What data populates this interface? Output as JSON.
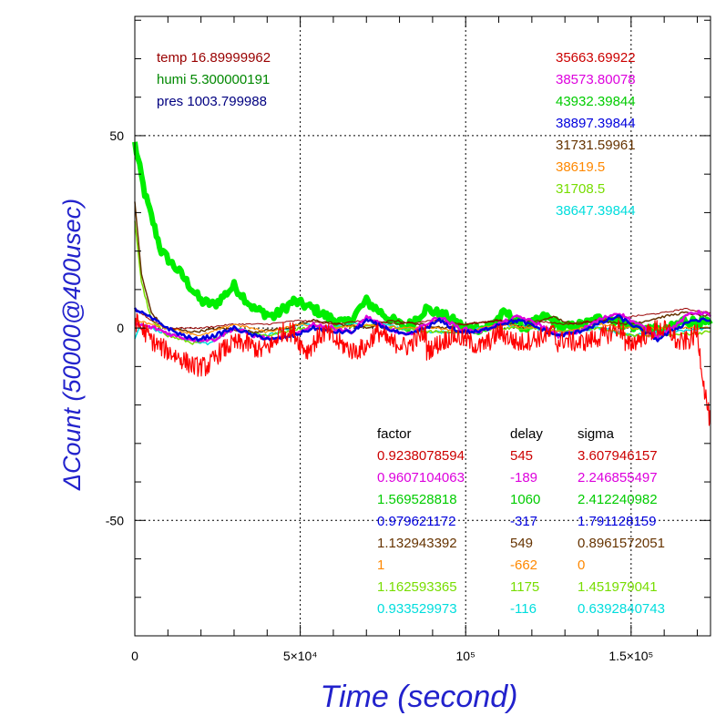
{
  "chart_data": {
    "type": "line",
    "title": "",
    "xlabel": "Time (second)",
    "ylabel": "ΔCount (50000@400usec)",
    "xlim": [
      0,
      174000
    ],
    "ylim": [
      -80,
      81
    ],
    "x_ticks": [
      {
        "value": 0,
        "label": "0"
      },
      {
        "value": 50000,
        "label": "5×10⁴"
      },
      {
        "value": 100000,
        "label": "10⁵"
      },
      {
        "value": 150000,
        "label": "1.5×10⁵"
      }
    ],
    "y_ticks": [
      {
        "value": 50,
        "label": "50"
      },
      {
        "value": 0,
        "label": "0"
      },
      {
        "value": -50,
        "label": "-50"
      }
    ],
    "grid": true,
    "env_labels": [
      {
        "text": "temp 16.89999962",
        "color": "#990000"
      },
      {
        "text": "humi 5.300000191",
        "color": "#008800"
      },
      {
        "text": "pres 1003.799988",
        "color": "#000080"
      }
    ],
    "series_means": [
      {
        "text": "35663.69922",
        "color": "#cc0000"
      },
      {
        "text": "38573.80078",
        "color": "#dd00dd"
      },
      {
        "text": "43932.39844",
        "color": "#00cc00"
      },
      {
        "text": "38897.39844",
        "color": "#0000dd"
      },
      {
        "text": "31731.59961",
        "color": "#663300"
      },
      {
        "text": "38619.5",
        "color": "#ff8800"
      },
      {
        "text": "31708.5",
        "color": "#77dd00"
      },
      {
        "text": "38647.39844",
        "color": "#00dddd"
      }
    ],
    "table": {
      "headers": [
        "factor",
        "delay",
        "sigma"
      ],
      "rows": [
        {
          "factor": "0.9238078594",
          "delay": "545",
          "sigma": "3.607946157",
          "color": "#cc0000"
        },
        {
          "factor": "0.9607104063",
          "delay": "-189",
          "sigma": "2.246855497",
          "color": "#dd00dd"
        },
        {
          "factor": "1.569528818",
          "delay": "1060",
          "sigma": "2.412240982",
          "color": "#00cc00"
        },
        {
          "factor": "0.979621172",
          "delay": "-317",
          "sigma": "1.791128159",
          "color": "#0000dd"
        },
        {
          "factor": "1.132943392",
          "delay": "549",
          "sigma": "0.8961572051",
          "color": "#663300"
        },
        {
          "factor": "1",
          "delay": "-662",
          "sigma": "0",
          "color": "#ff8800"
        },
        {
          "factor": "1.162593365",
          "delay": "1175",
          "sigma": "1.451979041",
          "color": "#77dd00"
        },
        {
          "factor": "0.933529973",
          "delay": "-116",
          "sigma": "0.6392840743",
          "color": "#00dddd"
        }
      ]
    },
    "series": [
      {
        "color": "#00ee00",
        "width": 6,
        "noise": 1.2,
        "points": [
          [
            0,
            48
          ],
          [
            3000,
            35
          ],
          [
            8000,
            20
          ],
          [
            14000,
            14
          ],
          [
            20000,
            7
          ],
          [
            24000,
            6
          ],
          [
            30000,
            11
          ],
          [
            36000,
            5
          ],
          [
            42000,
            3
          ],
          [
            48000,
            7
          ],
          [
            54000,
            5
          ],
          [
            58000,
            3
          ],
          [
            64000,
            1
          ],
          [
            70000,
            7
          ],
          [
            76000,
            3
          ],
          [
            82000,
            0
          ],
          [
            88000,
            5
          ],
          [
            94000,
            3
          ],
          [
            100000,
            0
          ],
          [
            106000,
            0
          ],
          [
            112000,
            4
          ],
          [
            118000,
            0
          ],
          [
            124000,
            3
          ],
          [
            130000,
            0
          ],
          [
            136000,
            1
          ],
          [
            142000,
            3
          ],
          [
            148000,
            1
          ],
          [
            154000,
            0
          ],
          [
            160000,
            -1
          ],
          [
            166000,
            2
          ],
          [
            174000,
            1
          ]
        ]
      },
      {
        "color": "#00dddd",
        "width": 1.5,
        "noise": 0.4,
        "points": [
          [
            0,
            -3
          ],
          [
            2000,
            1
          ],
          [
            8000,
            -1
          ],
          [
            16000,
            -3
          ],
          [
            22000,
            -4
          ],
          [
            30000,
            0
          ],
          [
            40000,
            -2
          ],
          [
            50000,
            1
          ],
          [
            60000,
            0
          ],
          [
            70000,
            2
          ],
          [
            80000,
            0
          ],
          [
            90000,
            -1
          ],
          [
            100000,
            -1
          ],
          [
            110000,
            1
          ],
          [
            120000,
            0
          ],
          [
            130000,
            -1
          ],
          [
            140000,
            0
          ],
          [
            150000,
            -2
          ],
          [
            160000,
            -1
          ],
          [
            174000,
            0
          ]
        ]
      },
      {
        "color": "#77dd00",
        "width": 1.5,
        "noise": 0.4,
        "points": [
          [
            0,
            28
          ],
          [
            2000,
            12
          ],
          [
            5000,
            2
          ],
          [
            10000,
            -2
          ],
          [
            18000,
            -4
          ],
          [
            24000,
            -3
          ],
          [
            30000,
            0
          ],
          [
            40000,
            -2
          ],
          [
            50000,
            0
          ],
          [
            60000,
            0
          ],
          [
            70000,
            1
          ],
          [
            80000,
            0
          ],
          [
            90000,
            -1
          ],
          [
            100000,
            -1
          ],
          [
            110000,
            0
          ],
          [
            120000,
            0
          ],
          [
            130000,
            -1
          ],
          [
            140000,
            0
          ],
          [
            150000,
            -2
          ],
          [
            160000,
            -2
          ],
          [
            174000,
            -1
          ]
        ]
      },
      {
        "color": "#663300",
        "width": 1.5,
        "noise": 0.3,
        "points": [
          [
            0,
            33
          ],
          [
            2000,
            14
          ],
          [
            5000,
            4
          ],
          [
            9000,
            0
          ],
          [
            18000,
            -1
          ],
          [
            26000,
            0
          ],
          [
            36000,
            -1
          ],
          [
            46000,
            0
          ],
          [
            54000,
            2
          ],
          [
            62000,
            1
          ],
          [
            70000,
            0
          ],
          [
            78000,
            2
          ],
          [
            86000,
            1
          ],
          [
            94000,
            0
          ],
          [
            100000,
            1
          ],
          [
            110000,
            2
          ],
          [
            118000,
            0
          ],
          [
            126000,
            3
          ],
          [
            132000,
            1
          ],
          [
            140000,
            2
          ],
          [
            150000,
            1
          ],
          [
            160000,
            3
          ],
          [
            166000,
            4
          ],
          [
            174000,
            3
          ]
        ]
      },
      {
        "color": "#990000",
        "width": 1,
        "noise": 0.2,
        "points": [
          [
            0,
            5
          ],
          [
            5000,
            2
          ],
          [
            10000,
            0
          ],
          [
            20000,
            0
          ],
          [
            30000,
            1
          ],
          [
            40000,
            1
          ],
          [
            50000,
            2
          ],
          [
            60000,
            1
          ],
          [
            70000,
            2
          ],
          [
            80000,
            1
          ],
          [
            90000,
            2
          ],
          [
            100000,
            1
          ],
          [
            110000,
            2
          ],
          [
            120000,
            2
          ],
          [
            130000,
            1
          ],
          [
            140000,
            2
          ],
          [
            150000,
            3
          ],
          [
            160000,
            4
          ],
          [
            166000,
            5
          ],
          [
            174000,
            4
          ]
        ]
      },
      {
        "color": "#ff8800",
        "width": 1.2,
        "noise": 0.3,
        "points": [
          [
            0,
            2
          ],
          [
            10000,
            0
          ],
          [
            20000,
            -2
          ],
          [
            30000,
            1
          ],
          [
            40000,
            -1
          ],
          [
            50000,
            1
          ],
          [
            60000,
            0
          ],
          [
            70000,
            1
          ],
          [
            80000,
            0
          ],
          [
            90000,
            0
          ],
          [
            100000,
            -1
          ],
          [
            110000,
            1
          ],
          [
            120000,
            0
          ],
          [
            130000,
            -1
          ],
          [
            140000,
            1
          ],
          [
            150000,
            0
          ],
          [
            160000,
            0
          ],
          [
            174000,
            0
          ]
        ]
      },
      {
        "color": "#dd00dd",
        "width": 2.5,
        "noise": 0.5,
        "points": [
          [
            0,
            1
          ],
          [
            6000,
            0
          ],
          [
            12000,
            -2
          ],
          [
            18000,
            -3
          ],
          [
            24000,
            -3
          ],
          [
            30000,
            0
          ],
          [
            36000,
            -2
          ],
          [
            42000,
            -3
          ],
          [
            48000,
            -2
          ],
          [
            54000,
            1
          ],
          [
            60000,
            0
          ],
          [
            66000,
            -1
          ],
          [
            70000,
            3
          ],
          [
            76000,
            0
          ],
          [
            82000,
            -2
          ],
          [
            88000,
            1
          ],
          [
            92000,
            3
          ],
          [
            98000,
            0
          ],
          [
            104000,
            -1
          ],
          [
            110000,
            1
          ],
          [
            116000,
            3
          ],
          [
            122000,
            1
          ],
          [
            128000,
            -2
          ],
          [
            134000,
            -1
          ],
          [
            140000,
            2
          ],
          [
            146000,
            4
          ],
          [
            152000,
            1
          ],
          [
            158000,
            -2
          ],
          [
            164000,
            1
          ],
          [
            168000,
            4
          ],
          [
            172000,
            4
          ],
          [
            174000,
            3
          ]
        ]
      },
      {
        "color": "#0000dd",
        "width": 2.5,
        "noise": 0.5,
        "points": [
          [
            0,
            5
          ],
          [
            6000,
            2
          ],
          [
            12000,
            -1
          ],
          [
            18000,
            -3
          ],
          [
            24000,
            -2
          ],
          [
            30000,
            0
          ],
          [
            36000,
            -2
          ],
          [
            42000,
            -3
          ],
          [
            48000,
            -2
          ],
          [
            54000,
            0
          ],
          [
            60000,
            -1
          ],
          [
            66000,
            -1
          ],
          [
            70000,
            2
          ],
          [
            76000,
            0
          ],
          [
            82000,
            -2
          ],
          [
            88000,
            0
          ],
          [
            92000,
            2
          ],
          [
            98000,
            -1
          ],
          [
            104000,
            -1
          ],
          [
            110000,
            1
          ],
          [
            116000,
            2
          ],
          [
            122000,
            0
          ],
          [
            128000,
            -2
          ],
          [
            134000,
            -1
          ],
          [
            140000,
            1
          ],
          [
            146000,
            3
          ],
          [
            152000,
            0
          ],
          [
            158000,
            -3
          ],
          [
            164000,
            0
          ],
          [
            168000,
            2
          ],
          [
            174000,
            2
          ]
        ]
      },
      {
        "color": "#ff0000",
        "width": 1.2,
        "noise": 2.6,
        "dense": true,
        "points": [
          [
            0,
            2
          ],
          [
            3000,
            -1
          ],
          [
            6000,
            -4
          ],
          [
            10000,
            -6
          ],
          [
            14000,
            -8
          ],
          [
            18000,
            -10
          ],
          [
            22000,
            -10
          ],
          [
            26000,
            -6
          ],
          [
            30000,
            -4
          ],
          [
            34000,
            -4
          ],
          [
            38000,
            -6
          ],
          [
            42000,
            -4
          ],
          [
            44000,
            -1
          ],
          [
            48000,
            -1
          ],
          [
            50000,
            -4
          ],
          [
            52000,
            -6
          ],
          [
            56000,
            -2
          ],
          [
            58000,
            -1
          ],
          [
            60000,
            -3
          ],
          [
            64000,
            -5
          ],
          [
            66000,
            -6
          ],
          [
            70000,
            -5
          ],
          [
            72000,
            -2
          ],
          [
            74000,
            -1
          ],
          [
            76000,
            -3
          ],
          [
            78000,
            -4
          ],
          [
            80000,
            -4
          ],
          [
            82000,
            -5
          ],
          [
            85000,
            -3
          ],
          [
            88000,
            -1
          ],
          [
            88200,
            -6
          ],
          [
            92000,
            -4
          ],
          [
            96000,
            -2
          ],
          [
            100000,
            -3
          ],
          [
            104000,
            -5
          ],
          [
            108000,
            -3
          ],
          [
            110000,
            -1
          ],
          [
            112000,
            -2
          ],
          [
            116000,
            -4
          ],
          [
            120000,
            -3
          ],
          [
            124000,
            -2
          ],
          [
            127000,
            -1
          ],
          [
            127200,
            -4
          ],
          [
            130000,
            -3
          ],
          [
            134000,
            -4
          ],
          [
            138000,
            -3
          ],
          [
            142000,
            -2
          ],
          [
            146000,
            0
          ],
          [
            148000,
            -1
          ],
          [
            148200,
            -5
          ],
          [
            152000,
            -3
          ],
          [
            156000,
            -1
          ],
          [
            158000,
            0
          ],
          [
            162000,
            -1
          ],
          [
            164000,
            -4
          ],
          [
            168000,
            -3
          ],
          [
            170000,
            -1
          ],
          [
            172000,
            -15
          ],
          [
            174000,
            -25
          ]
        ]
      }
    ]
  }
}
